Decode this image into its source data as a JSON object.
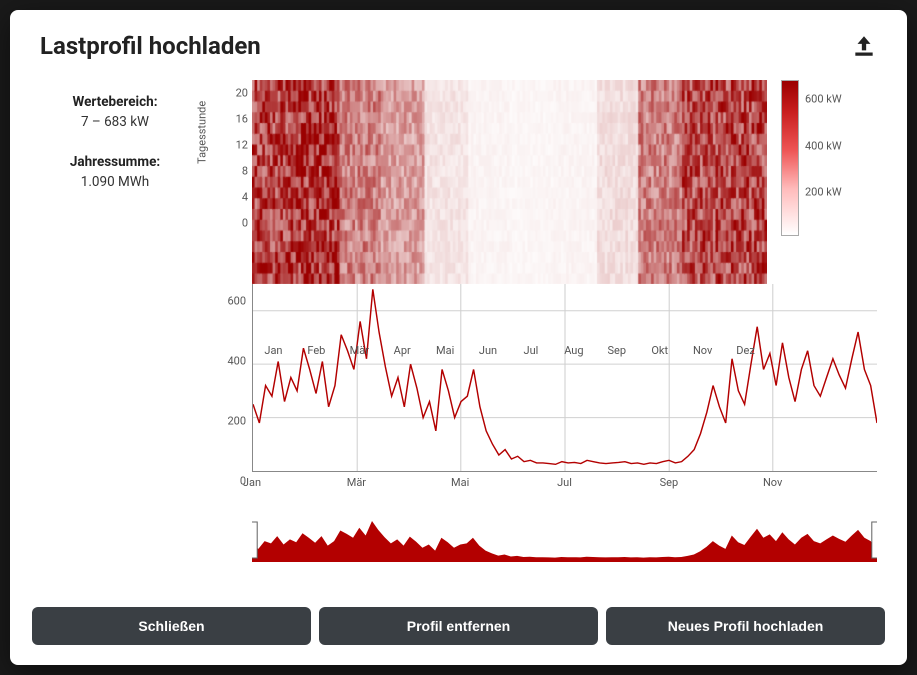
{
  "title": "Lastprofil hochladen",
  "stats": {
    "range_label": "Wertebereich:",
    "range_value": "7 – 683 kW",
    "sum_label": "Jahressumme:",
    "sum_value": "1.090 MWh"
  },
  "heatmap": {
    "type": "heatmap",
    "y_label": "Tagesstunde",
    "y_ticks": [
      0,
      4,
      8,
      12,
      16,
      20
    ],
    "y_range": [
      0,
      24
    ],
    "x_months": [
      "Jan",
      "Feb",
      "Mär",
      "Apr",
      "Mai",
      "Jun",
      "Jul",
      "Aug",
      "Sep",
      "Okt",
      "Nov",
      "Dez"
    ],
    "colorbar": {
      "ticks": [
        {
          "v": 600,
          "label": "600 kW",
          "pos": 0.12
        },
        {
          "v": 400,
          "label": "400 kW",
          "pos": 0.42
        },
        {
          "v": 200,
          "label": "200 kW",
          "pos": 0.72
        }
      ],
      "max": 683,
      "colors": [
        "#ffffff",
        "#fdd",
        "#fbb",
        "#f88",
        "#e55",
        "#c81e1e",
        "#9b0000"
      ]
    },
    "month_intensity": [
      0.82,
      0.9,
      0.55,
      0.42,
      0.12,
      0.05,
      0.04,
      0.05,
      0.15,
      0.55,
      0.78,
      0.82
    ],
    "hour_band": {
      "low": 5,
      "high": 23
    }
  },
  "linechart": {
    "type": "line",
    "y_ticks": [
      0,
      200,
      400,
      600
    ],
    "y_range": [
      0,
      700
    ],
    "x_ticks": [
      {
        "label": "Jan",
        "pos": 0.0
      },
      {
        "label": "Mär",
        "pos": 0.167
      },
      {
        "label": "Mai",
        "pos": 0.333
      },
      {
        "label": "Jul",
        "pos": 0.5
      },
      {
        "label": "Sep",
        "pos": 0.667
      },
      {
        "label": "Nov",
        "pos": 0.833
      }
    ],
    "line_color": "#b30000",
    "line_width": 1.4,
    "background_color": "#ffffff",
    "grid_color": "#d0d0d0",
    "series": [
      250,
      180,
      320,
      280,
      410,
      260,
      350,
      300,
      460,
      380,
      290,
      410,
      240,
      320,
      510,
      450,
      380,
      560,
      420,
      680,
      520,
      390,
      280,
      350,
      240,
      400,
      310,
      200,
      260,
      150,
      380,
      300,
      200,
      260,
      280,
      380,
      240,
      150,
      100,
      60,
      80,
      45,
      55,
      35,
      40,
      30,
      30,
      28,
      25,
      35,
      30,
      32,
      28,
      40,
      35,
      30,
      28,
      30,
      32,
      35,
      28,
      30,
      25,
      30,
      28,
      35,
      40,
      30,
      35,
      55,
      80,
      140,
      220,
      320,
      240,
      180,
      420,
      300,
      250,
      400,
      540,
      380,
      440,
      320,
      480,
      350,
      260,
      380,
      450,
      320,
      280,
      350,
      420,
      360,
      310,
      420,
      520,
      380,
      320,
      180
    ]
  },
  "range_slider": {
    "fill_color": "#b30000",
    "handle_color": "#666666",
    "series_ref": "linechart.series"
  },
  "footer": {
    "close_label": "Schließen",
    "remove_label": "Profil entfernen",
    "upload_new_label": "Neues Profil hochladen"
  },
  "colors": {
    "modal_bg": "#ffffff",
    "page_bg": "#1a1a1a",
    "text": "#222222",
    "button_bg": "#3a3f44",
    "button_text": "#ffffff"
  }
}
